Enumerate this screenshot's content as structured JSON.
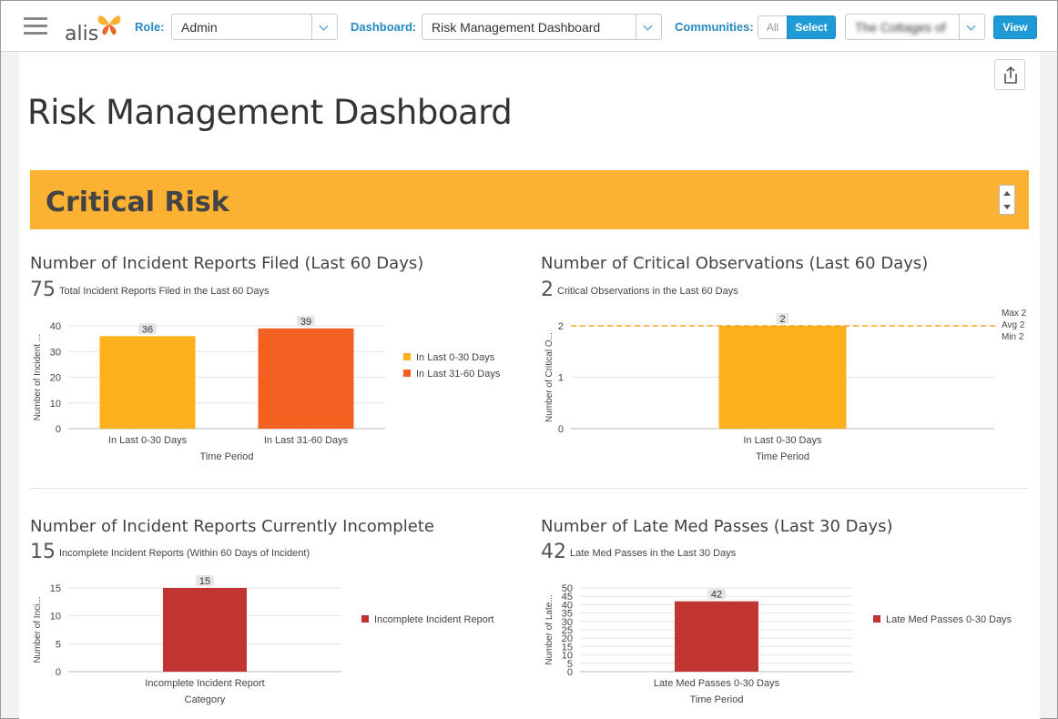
{
  "header": {
    "logo_text": "alis",
    "role_label": "Role:",
    "role_value": "Admin",
    "dashboard_label": "Dashboard:",
    "dashboard_value": "Risk Management Dashboard",
    "communities_label": "Communities:",
    "seg_all": "All",
    "seg_select": "Select",
    "community_value": "The Cottages of",
    "view_label": "View"
  },
  "page_title": "Risk Management Dashboard",
  "section_title": "Critical Risk",
  "colors": {
    "accent": "#fbb232",
    "blue": "#1e9ad6",
    "orange": "#f26122",
    "yellow": "#fbb01c",
    "red": "#c03432"
  },
  "panels": [
    {
      "title": "Number of Incident Reports Filed (Last 60 Days)",
      "count": "75",
      "subtitle": "Total Incident Reports Filed in the Last 60 Days"
    },
    {
      "title": "Number of Critical Observations (Last 60 Days)",
      "count": "2",
      "subtitle": "Critical Observations in the Last 60 Days"
    },
    {
      "title": "Number of Incident Reports Currently Incomplete",
      "count": "15",
      "subtitle": "Incomplete Incident Reports (Within 60 Days of Incident)"
    },
    {
      "title": "Number of Late Med Passes (Last 30 Days)",
      "count": "42",
      "subtitle": "Late Med Passes in the Last 30 Days"
    }
  ],
  "chart_data": [
    {
      "type": "bar",
      "categories": [
        "In Last 0-30 Days",
        "In Last 31-60 Days"
      ],
      "values": [
        36,
        39
      ],
      "colors": [
        "#fbb01c",
        "#f26122"
      ],
      "xlabel": "Time Period",
      "ylabel": "Number of Incident ...",
      "ylim": [
        0,
        40
      ],
      "yticks": [
        0,
        10,
        20,
        30,
        40
      ],
      "legend": [
        "In Last 0-30 Days",
        "In Last 31-60 Days"
      ],
      "legend_position": "right"
    },
    {
      "type": "bar",
      "categories": [
        "In Last 0-30 Days"
      ],
      "values": [
        2
      ],
      "colors": [
        "#fbb01c"
      ],
      "xlabel": "Time Period",
      "ylabel": "Number of Critical O...",
      "ylim": [
        0,
        2
      ],
      "yticks": [
        0,
        1,
        2
      ],
      "reference_line": 2,
      "reference_labels": [
        "Max 2",
        "Avg 2",
        "Min 2"
      ]
    },
    {
      "type": "bar",
      "categories": [
        "Incomplete Incident Report"
      ],
      "values": [
        15
      ],
      "colors": [
        "#c03432"
      ],
      "xlabel": "Category",
      "ylabel": "Number of Inci...",
      "ylim": [
        0,
        15
      ],
      "yticks": [
        0,
        5,
        10,
        15
      ],
      "legend": [
        "Incomplete Incident Report"
      ],
      "legend_position": "right"
    },
    {
      "type": "bar",
      "categories": [
        "Late Med Passes 0-30 Days"
      ],
      "values": [
        42
      ],
      "colors": [
        "#c03432"
      ],
      "xlabel": "Time Period",
      "ylabel": "Number of Late...",
      "ylim": [
        0,
        50
      ],
      "yticks": [
        0,
        5,
        10,
        15,
        20,
        25,
        30,
        35,
        40,
        45,
        50
      ],
      "legend": [
        "Late Med Passes 0-30 Days"
      ],
      "legend_position": "right"
    }
  ]
}
